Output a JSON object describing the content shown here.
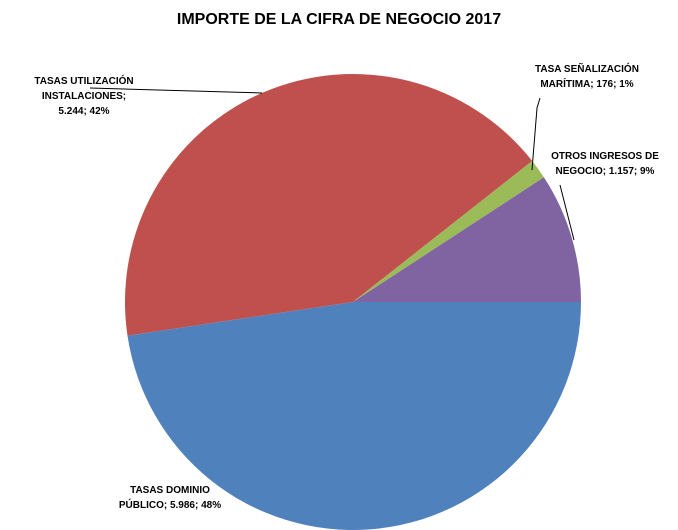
{
  "chart_data": {
    "type": "pie",
    "title": "IMPORTE DE LA CIFRA DE NEGOCIO 2017",
    "values": [
      5986,
      5244,
      176,
      1157
    ],
    "value_labels": [
      "TASAS DOMINIO PÚBLICO; 5.986; 48%",
      "TASAS UTILIZACIÓN INSTALACIONES; 5.244; 42%",
      "TASA SEÑALIZACIÓN MARÍTIMA; 176; 1%",
      "OTROS INGRESOS DE NEGOCIO; 1.157; 9%"
    ],
    "colors": [
      "#4f81bd",
      "#c0504d",
      "#9bbb59",
      "#8064a2"
    ]
  }
}
